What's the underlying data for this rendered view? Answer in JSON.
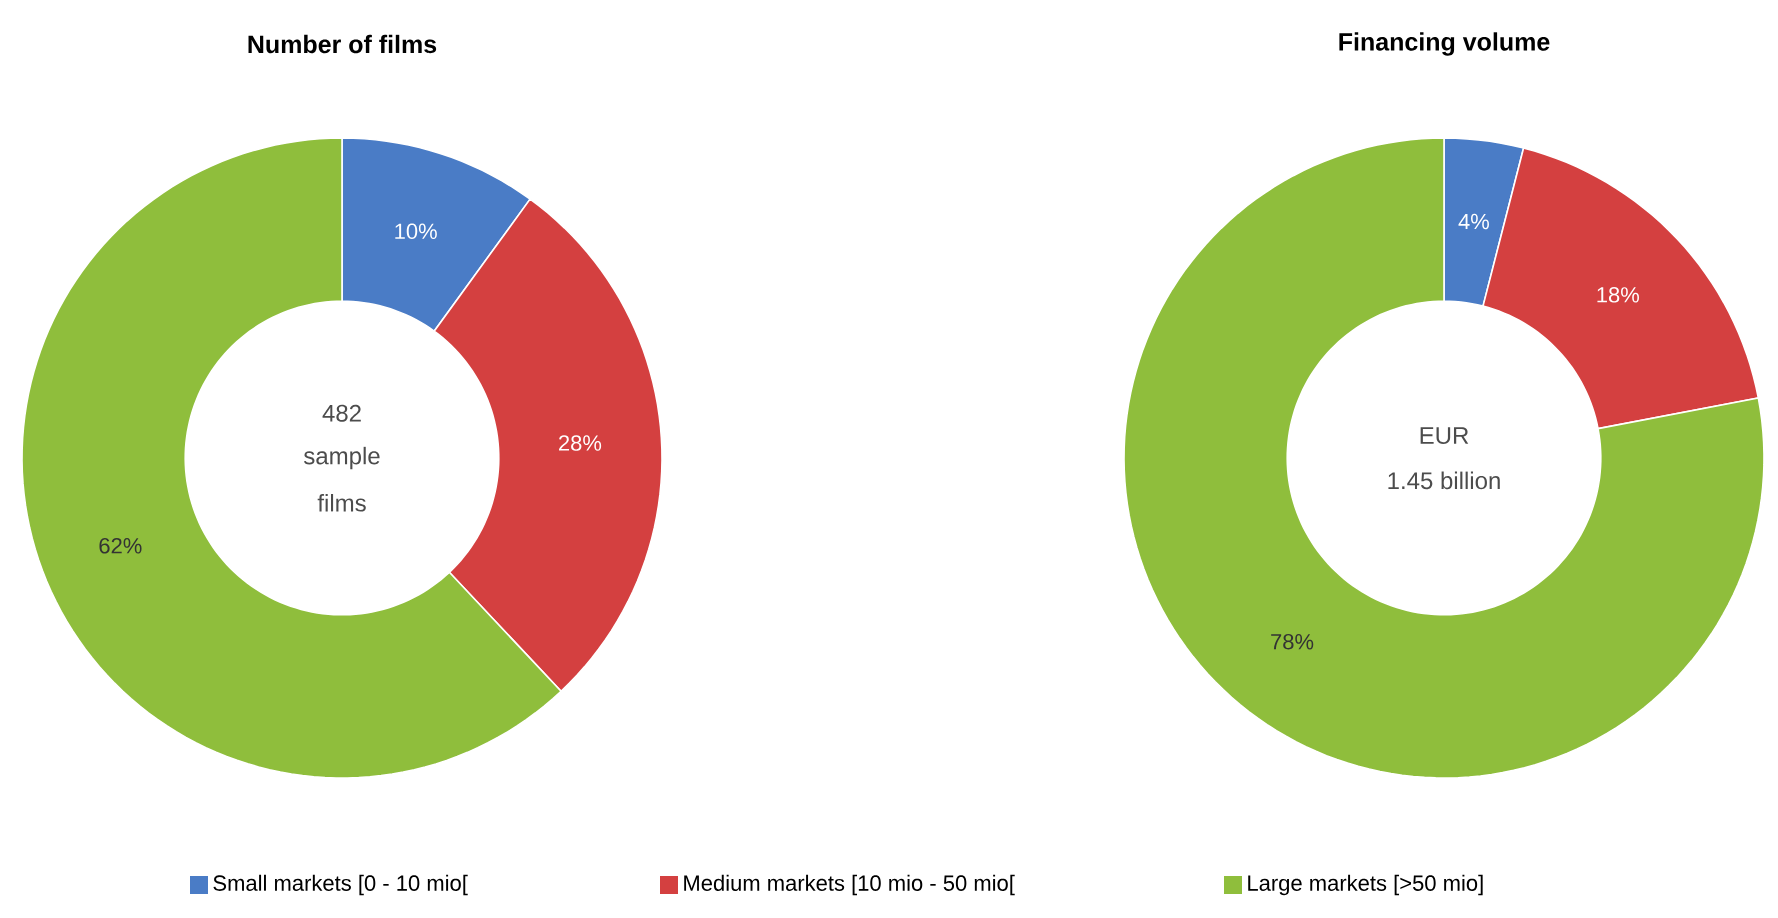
{
  "chart_data": [
    {
      "type": "donut",
      "title": "Number of films",
      "categories": [
        "Small markets [0 - 10 mio[",
        "Medium markets [10 mio - 50 mio[",
        "Large markets [>50 mio]"
      ],
      "values": [
        10,
        28,
        62
      ],
      "value_labels": [
        "10%",
        "28%",
        "62%"
      ],
      "colors": [
        "#4a7cc6",
        "#d44040",
        "#8fbe3c"
      ],
      "annotations": [
        "482",
        "sample",
        "films"
      ],
      "legend": "bottom"
    },
    {
      "type": "donut",
      "title": "Financing volume",
      "categories": [
        null,
        null,
        null
      ],
      "values": [
        4,
        18,
        78
      ],
      "value_labels": [
        "4%",
        "18%",
        "78%"
      ],
      "colors": [
        "#4a7cc6",
        "#d44040",
        "#8fbe3c"
      ],
      "annotations": [
        "EUR",
        "1.45 billion"
      ]
    }
  ]
}
